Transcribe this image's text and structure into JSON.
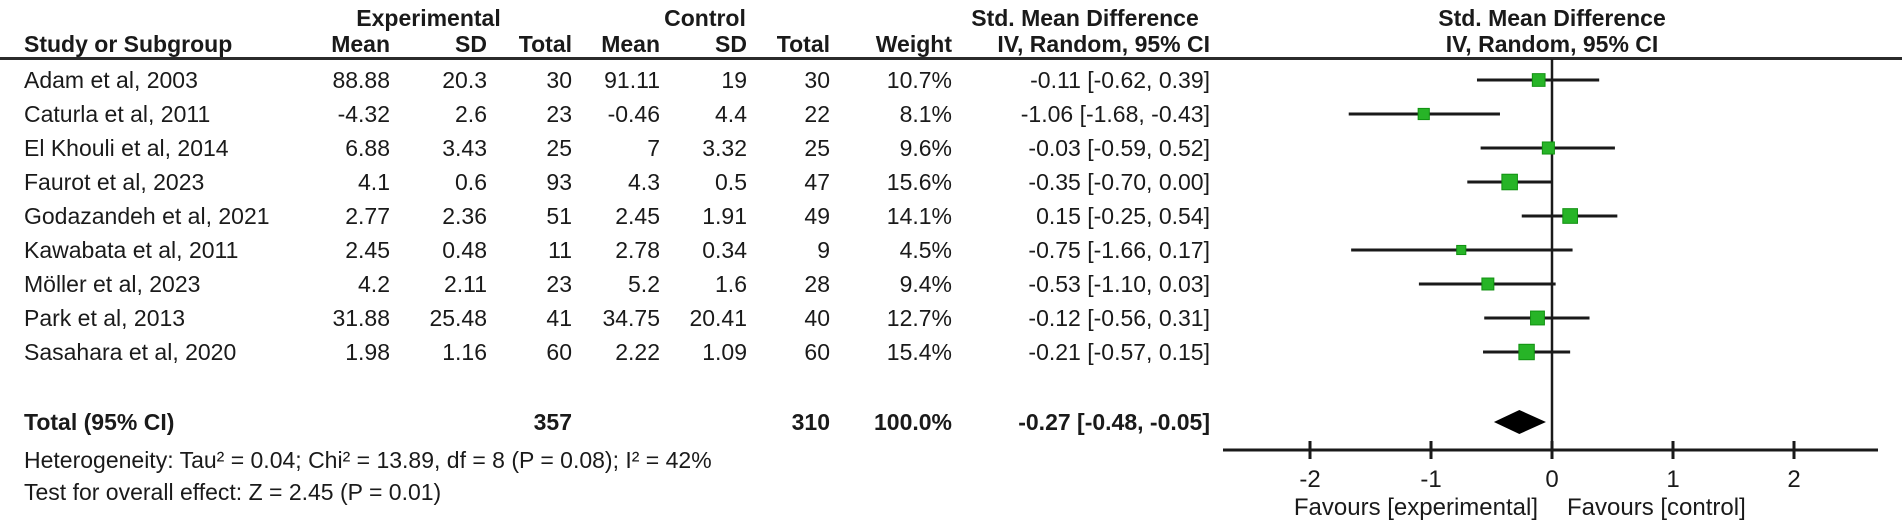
{
  "header": {
    "group_experimental": "Experimental",
    "group_control": "Control",
    "smd_left": "Std. Mean Difference",
    "smd_right": "Std. Mean Difference",
    "col_study": "Study or Subgroup",
    "col_mean_exp": "Mean",
    "col_sd_exp": "SD",
    "col_total_exp": "Total",
    "col_mean_ctl": "Mean",
    "col_sd_ctl": "SD",
    "col_total_ctl": "Total",
    "col_weight": "Weight",
    "col_ci": "IV, Random, 95% CI",
    "col_ci_plot": "IV, Random, 95% CI"
  },
  "footer": {
    "heterogeneity": "Heterogeneity: Tau² = 0.04; Chi² = 13.89, df = 8 (P = 0.08); I² = 42%",
    "overall_effect": "Test for overall effect: Z = 2.45 (P = 0.01)"
  },
  "chart_data": {
    "type": "forest",
    "effect_measure": "Std. Mean Difference",
    "method": "IV, Random, 95% CI",
    "marker_color": "#27b427",
    "line_color": "#1a1a1a",
    "diamond_color": "#000000",
    "axis": {
      "tick_values": [
        -2,
        -1,
        0,
        1,
        2
      ],
      "tick_labels": [
        "-2",
        "-1",
        "0",
        "1",
        "2"
      ],
      "min": -2.72,
      "max": 2.72,
      "favours_left": "Favours [experimental]",
      "favours_right": "Favours [control]"
    },
    "studies": [
      {
        "name": "Adam et al, 2003",
        "exp_mean": "88.88",
        "exp_sd": "20.3",
        "exp_total": "30",
        "ctl_mean": "91.11",
        "ctl_sd": "19",
        "ctl_total": "30",
        "weight": "10.7%",
        "weight_pct": 10.7,
        "ci_text": "-0.11 [-0.62, 0.39]",
        "est": -0.11,
        "lo": -0.62,
        "hi": 0.39
      },
      {
        "name": "Caturla et al, 2011",
        "exp_mean": "-4.32",
        "exp_sd": "2.6",
        "exp_total": "23",
        "ctl_mean": "-0.46",
        "ctl_sd": "4.4",
        "ctl_total": "22",
        "weight": "8.1%",
        "weight_pct": 8.1,
        "ci_text": "-1.06 [-1.68, -0.43]",
        "est": -1.06,
        "lo": -1.68,
        "hi": -0.43
      },
      {
        "name": "El Khouli et al, 2014",
        "exp_mean": "6.88",
        "exp_sd": "3.43",
        "exp_total": "25",
        "ctl_mean": "7",
        "ctl_sd": "3.32",
        "ctl_total": "25",
        "weight": "9.6%",
        "weight_pct": 9.6,
        "ci_text": "-0.03 [-0.59, 0.52]",
        "est": -0.03,
        "lo": -0.59,
        "hi": 0.52
      },
      {
        "name": "Faurot et al, 2023",
        "exp_mean": "4.1",
        "exp_sd": "0.6",
        "exp_total": "93",
        "ctl_mean": "4.3",
        "ctl_sd": "0.5",
        "ctl_total": "47",
        "weight": "15.6%",
        "weight_pct": 15.6,
        "ci_text": "-0.35 [-0.70, 0.00]",
        "est": -0.35,
        "lo": -0.7,
        "hi": 0.0
      },
      {
        "name": "Godazandeh et al, 2021",
        "exp_mean": "2.77",
        "exp_sd": "2.36",
        "exp_total": "51",
        "ctl_mean": "2.45",
        "ctl_sd": "1.91",
        "ctl_total": "49",
        "weight": "14.1%",
        "weight_pct": 14.1,
        "ci_text": "0.15 [-0.25, 0.54]",
        "est": 0.15,
        "lo": -0.25,
        "hi": 0.54
      },
      {
        "name": "Kawabata et al, 2011",
        "exp_mean": "2.45",
        "exp_sd": "0.48",
        "exp_total": "11",
        "ctl_mean": "2.78",
        "ctl_sd": "0.34",
        "ctl_total": "9",
        "weight": "4.5%",
        "weight_pct": 4.5,
        "ci_text": "-0.75 [-1.66, 0.17]",
        "est": -0.75,
        "lo": -1.66,
        "hi": 0.17
      },
      {
        "name": "Möller et al, 2023",
        "exp_mean": "4.2",
        "exp_sd": "2.11",
        "exp_total": "23",
        "ctl_mean": "5.2",
        "ctl_sd": "1.6",
        "ctl_total": "28",
        "weight": "9.4%",
        "weight_pct": 9.4,
        "ci_text": "-0.53 [-1.10, 0.03]",
        "est": -0.53,
        "lo": -1.1,
        "hi": 0.03
      },
      {
        "name": "Park et al, 2013",
        "exp_mean": "31.88",
        "exp_sd": "25.48",
        "exp_total": "41",
        "ctl_mean": "34.75",
        "ctl_sd": "20.41",
        "ctl_total": "40",
        "weight": "12.7%",
        "weight_pct": 12.7,
        "ci_text": "-0.12 [-0.56, 0.31]",
        "est": -0.12,
        "lo": -0.56,
        "hi": 0.31
      },
      {
        "name": "Sasahara et al, 2020",
        "exp_mean": "1.98",
        "exp_sd": "1.16",
        "exp_total": "60",
        "ctl_mean": "2.22",
        "ctl_sd": "1.09",
        "ctl_total": "60",
        "weight": "15.4%",
        "weight_pct": 15.4,
        "ci_text": "-0.21 [-0.57, 0.15]",
        "est": -0.21,
        "lo": -0.57,
        "hi": 0.15
      }
    ],
    "total": {
      "label": "Total (95% CI)",
      "exp_total": "357",
      "ctl_total": "310",
      "weight": "100.0%",
      "ci_text": "-0.27 [-0.48, -0.05]",
      "est": -0.27,
      "lo": -0.48,
      "hi": -0.05
    }
  }
}
